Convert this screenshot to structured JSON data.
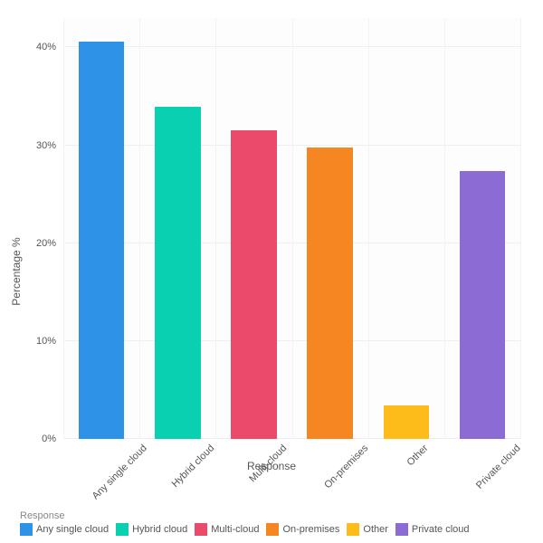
{
  "chart": {
    "type": "bar",
    "x_label": "Response",
    "y_label": "Percentage %",
    "categories": [
      "Any single cloud",
      "Hybrid cloud",
      "Multi-cloud",
      "On-premises",
      "Other",
      "Private cloud"
    ],
    "values": [
      40.6,
      33.9,
      31.5,
      29.8,
      3.4,
      27.4
    ],
    "bar_colors": [
      "#2e93e6",
      "#09d0b1",
      "#ec4a6b",
      "#f68622",
      "#fdbc19",
      "#8d6bd4"
    ],
    "background_color": "#ffffff",
    "plot_background_color": "#fdfdfd",
    "grid_color": "#eeeeee",
    "vgrid_color": "#f3f3f3",
    "label_color": "#555555",
    "ylim": [
      0,
      43
    ],
    "yticks": [
      0,
      10,
      20,
      30,
      40
    ],
    "ytick_format": "{v}%",
    "bar_width": 0.6,
    "label_fontsize": 11,
    "axis_title_fontsize": 12,
    "x_tick_rotation": -45,
    "legend": {
      "title": "Response",
      "position": "bottom",
      "items": [
        "Any single cloud",
        "Hybrid cloud",
        "Multi-cloud",
        "On-premises",
        "Other",
        "Private cloud"
      ],
      "colors": [
        "#2e93e6",
        "#09d0b1",
        "#ec4a6b",
        "#f68622",
        "#fdbc19",
        "#8d6bd4"
      ]
    }
  }
}
